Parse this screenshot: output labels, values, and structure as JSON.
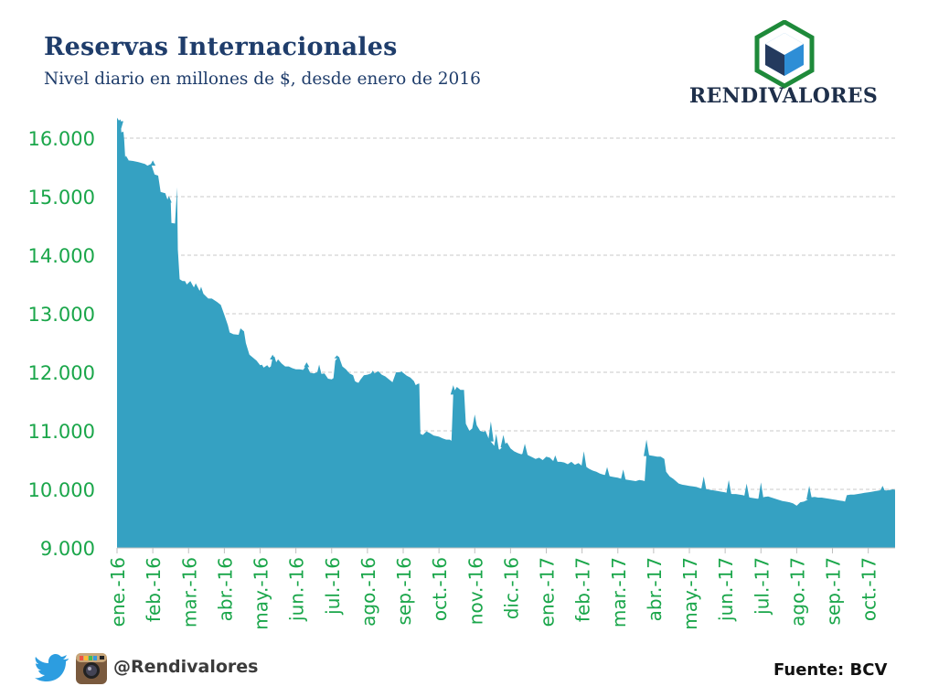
{
  "header": {
    "title": "Reservas Internacionales",
    "subtitle": "Nivel diario en millones de $, desde enero de 2016"
  },
  "brand": {
    "name": "RENDIVALORES"
  },
  "footer": {
    "handle": "@Rendivalores",
    "source": "Fuente: BCV"
  },
  "colors": {
    "area": "#35a1c2",
    "tick_text": "#1aa64a",
    "title": "#1f3d6b",
    "logo_green": "#1e8a3a",
    "logo_blue": "#2e8ed6",
    "logo_dark": "#243a5e"
  },
  "icons": [
    "twitter-icon",
    "instagram-icon"
  ],
  "chart_data": {
    "type": "area",
    "title": "Reservas Internacionales",
    "subtitle": "Nivel diario en millones de $, desde enero de 2016",
    "xlabel": "",
    "ylabel": "",
    "ylim": [
      9000,
      16500
    ],
    "yticks": [
      9000,
      10000,
      11000,
      12000,
      13000,
      14000,
      15000,
      16000
    ],
    "ytick_labels": [
      "9.000",
      "10.000",
      "11.000",
      "12.000",
      "13.000",
      "14.000",
      "15.000",
      "16.000"
    ],
    "xtick_labels": [
      "ene.-16",
      "feb.-16",
      "mar.-16",
      "abr.-16",
      "may.-16",
      "jun.-16",
      "jul.-16",
      "ago.-16",
      "sep.-16",
      "oct.-16",
      "nov.-16",
      "dic.-16",
      "ene.-17",
      "feb.-17",
      "mar.-17",
      "abr.-17",
      "may.-17",
      "jun.-17",
      "jul.-17",
      "ago.-17",
      "sep.-17",
      "oct.-17"
    ],
    "x_range_months": [
      0,
      21.75
    ],
    "grid": "horizontal dashed",
    "series": [
      {
        "points": [
          [
            0.0,
            16350
          ],
          [
            0.05,
            16300
          ],
          [
            0.1,
            16320
          ],
          [
            0.12,
            16100
          ],
          [
            0.18,
            16110
          ],
          [
            0.2,
            15980
          ],
          [
            0.23,
            15650
          ],
          [
            0.3,
            15620
          ],
          [
            0.45,
            15610
          ],
          [
            0.6,
            15590
          ],
          [
            0.78,
            15560
          ],
          [
            0.85,
            15530
          ],
          [
            0.95,
            15560
          ],
          [
            1.05,
            15380
          ],
          [
            1.15,
            15360
          ],
          [
            1.22,
            15080
          ],
          [
            1.35,
            15060
          ],
          [
            1.42,
            14930
          ],
          [
            1.5,
            14930
          ],
          [
            1.52,
            14550
          ],
          [
            1.62,
            14540
          ],
          [
            1.68,
            15160
          ],
          [
            1.7,
            14100
          ],
          [
            1.75,
            13590
          ],
          [
            1.83,
            13560
          ],
          [
            1.9,
            13560
          ],
          [
            1.95,
            13500
          ],
          [
            2.05,
            13560
          ],
          [
            2.1,
            13500
          ],
          [
            2.15,
            13450
          ],
          [
            2.2,
            13520
          ],
          [
            2.3,
            13400
          ],
          [
            2.4,
            13350
          ],
          [
            2.55,
            13260
          ],
          [
            2.65,
            13260
          ],
          [
            2.8,
            13200
          ],
          [
            2.9,
            13150
          ],
          [
            3.0,
            12980
          ],
          [
            3.1,
            12800
          ],
          [
            3.15,
            12680
          ],
          [
            3.25,
            12650
          ],
          [
            3.4,
            12640
          ],
          [
            3.45,
            12750
          ],
          [
            3.55,
            12700
          ],
          [
            3.6,
            12500
          ],
          [
            3.7,
            12300
          ],
          [
            3.8,
            12250
          ],
          [
            3.9,
            12200
          ],
          [
            4.0,
            12120
          ],
          [
            4.05,
            12130
          ],
          [
            4.1,
            12080
          ],
          [
            4.2,
            12120
          ],
          [
            4.25,
            12080
          ],
          [
            4.3,
            12100
          ],
          [
            4.35,
            12250
          ],
          [
            4.4,
            12270
          ],
          [
            4.45,
            12170
          ],
          [
            4.5,
            12220
          ],
          [
            4.6,
            12150
          ],
          [
            4.7,
            12100
          ],
          [
            4.8,
            12100
          ],
          [
            4.9,
            12070
          ],
          [
            5.0,
            12050
          ],
          [
            5.1,
            12050
          ],
          [
            5.2,
            12040
          ],
          [
            5.3,
            12120
          ],
          [
            5.4,
            11990
          ],
          [
            5.5,
            11980
          ],
          [
            5.6,
            12000
          ],
          [
            5.7,
            11970
          ],
          [
            5.8,
            11980
          ],
          [
            5.9,
            11890
          ],
          [
            6.0,
            11880
          ],
          [
            6.05,
            11900
          ],
          [
            6.1,
            12200
          ],
          [
            6.2,
            12270
          ],
          [
            6.3,
            12100
          ],
          [
            6.4,
            12050
          ],
          [
            6.5,
            11980
          ],
          [
            6.6,
            11950
          ],
          [
            6.65,
            11850
          ],
          [
            6.7,
            11830
          ],
          [
            6.75,
            11820
          ],
          [
            6.8,
            11870
          ],
          [
            6.9,
            11950
          ],
          [
            7.0,
            11960
          ],
          [
            7.1,
            11980
          ],
          [
            7.15,
            12030
          ],
          [
            7.2,
            11980
          ],
          [
            7.3,
            12020
          ],
          [
            7.4,
            11960
          ],
          [
            7.5,
            11930
          ],
          [
            7.6,
            11880
          ],
          [
            7.7,
            11830
          ],
          [
            7.8,
            12000
          ],
          [
            7.9,
            12000
          ],
          [
            8.0,
            11990
          ],
          [
            8.1,
            11940
          ],
          [
            8.2,
            11910
          ],
          [
            8.3,
            11850
          ],
          [
            8.35,
            11780
          ],
          [
            8.4,
            11800
          ],
          [
            8.45,
            11810
          ],
          [
            8.48,
            10950
          ],
          [
            8.55,
            10930
          ],
          [
            8.65,
            10990
          ],
          [
            8.75,
            10960
          ],
          [
            8.85,
            10920
          ],
          [
            9.0,
            10900
          ],
          [
            9.1,
            10870
          ],
          [
            9.2,
            10850
          ],
          [
            9.3,
            10850
          ],
          [
            9.35,
            10830
          ],
          [
            9.4,
            11650
          ],
          [
            9.5,
            11750
          ],
          [
            9.6,
            11700
          ],
          [
            9.7,
            11700
          ],
          [
            9.75,
            11120
          ],
          [
            9.85,
            11000
          ],
          [
            9.95,
            11050
          ],
          [
            10.05,
            11100
          ],
          [
            10.15,
            11000
          ],
          [
            10.25,
            10980
          ],
          [
            10.3,
            11000
          ],
          [
            10.4,
            10850
          ],
          [
            10.5,
            10780
          ],
          [
            10.6,
            10700
          ],
          [
            10.7,
            10680
          ],
          [
            10.8,
            10750
          ],
          [
            10.9,
            10800
          ],
          [
            11.0,
            10700
          ],
          [
            11.1,
            10650
          ],
          [
            11.2,
            10620
          ],
          [
            11.3,
            10600
          ],
          [
            11.4,
            10620
          ],
          [
            11.5,
            10580
          ],
          [
            11.6,
            10550
          ],
          [
            11.7,
            10520
          ],
          [
            11.8,
            10540
          ],
          [
            11.9,
            10500
          ],
          [
            12.0,
            10560
          ],
          [
            12.1,
            10540
          ],
          [
            12.2,
            10480
          ],
          [
            12.3,
            10470
          ],
          [
            12.4,
            10470
          ],
          [
            12.5,
            10460
          ],
          [
            12.6,
            10430
          ],
          [
            12.7,
            10470
          ],
          [
            12.8,
            10420
          ],
          [
            12.9,
            10450
          ],
          [
            13.0,
            10400
          ],
          [
            13.1,
            10390
          ],
          [
            13.2,
            10350
          ],
          [
            13.3,
            10320
          ],
          [
            13.4,
            10300
          ],
          [
            13.5,
            10270
          ],
          [
            13.6,
            10250
          ],
          [
            13.7,
            10240
          ],
          [
            13.8,
            10220
          ],
          [
            13.9,
            10210
          ],
          [
            14.0,
            10200
          ],
          [
            14.1,
            10180
          ],
          [
            14.2,
            10170
          ],
          [
            14.3,
            10160
          ],
          [
            14.4,
            10150
          ],
          [
            14.5,
            10140
          ],
          [
            14.6,
            10160
          ],
          [
            14.7,
            10150
          ],
          [
            14.75,
            10140
          ],
          [
            14.8,
            10600
          ],
          [
            14.9,
            10580
          ],
          [
            15.0,
            10570
          ],
          [
            15.1,
            10560
          ],
          [
            15.2,
            10560
          ],
          [
            15.3,
            10520
          ],
          [
            15.35,
            10300
          ],
          [
            15.45,
            10220
          ],
          [
            15.55,
            10180
          ],
          [
            15.7,
            10100
          ],
          [
            15.8,
            10080
          ],
          [
            15.9,
            10070
          ],
          [
            16.0,
            10060
          ],
          [
            16.1,
            10050
          ],
          [
            16.2,
            10040
          ],
          [
            16.3,
            10020
          ],
          [
            16.4,
            10010
          ],
          [
            16.5,
            10000
          ],
          [
            16.6,
            9990
          ],
          [
            16.7,
            9980
          ],
          [
            16.8,
            9970
          ],
          [
            16.9,
            9960
          ],
          [
            17.0,
            9950
          ],
          [
            17.1,
            9930
          ],
          [
            17.2,
            9920
          ],
          [
            17.3,
            9920
          ],
          [
            17.4,
            9910
          ],
          [
            17.5,
            9900
          ],
          [
            17.6,
            9880
          ],
          [
            17.7,
            9860
          ],
          [
            17.8,
            9850
          ],
          [
            17.9,
            9840
          ],
          [
            18.0,
            9850
          ],
          [
            18.1,
            9870
          ],
          [
            18.2,
            9880
          ],
          [
            18.3,
            9860
          ],
          [
            18.4,
            9840
          ],
          [
            18.5,
            9820
          ],
          [
            18.6,
            9800
          ],
          [
            18.7,
            9790
          ],
          [
            18.8,
            9780
          ],
          [
            18.9,
            9760
          ],
          [
            18.95,
            9740
          ],
          [
            19.0,
            9720
          ],
          [
            19.1,
            9780
          ],
          [
            19.2,
            9790
          ],
          [
            19.3,
            9820
          ],
          [
            19.35,
            9860
          ],
          [
            19.5,
            9870
          ],
          [
            19.6,
            9860
          ],
          [
            19.7,
            9860
          ],
          [
            19.8,
            9850
          ],
          [
            19.9,
            9840
          ],
          [
            20.0,
            9830
          ],
          [
            20.1,
            9820
          ],
          [
            20.2,
            9810
          ],
          [
            20.3,
            9800
          ],
          [
            20.35,
            9790
          ],
          [
            20.4,
            9900
          ],
          [
            20.5,
            9910
          ],
          [
            20.6,
            9910
          ],
          [
            20.7,
            9920
          ],
          [
            20.8,
            9930
          ],
          [
            20.9,
            9940
          ],
          [
            21.0,
            9950
          ],
          [
            21.1,
            9960
          ],
          [
            21.2,
            9970
          ],
          [
            21.3,
            9980
          ],
          [
            21.4,
            9990
          ],
          [
            21.5,
            9980
          ],
          [
            21.6,
            9990
          ],
          [
            21.7,
            10000
          ],
          [
            21.75,
            9990
          ]
        ],
        "spikes": [
          [
            0.1,
            16130
          ],
          [
            0.25,
            15700
          ],
          [
            1.0,
            15620
          ],
          [
            1.45,
            15010
          ],
          [
            2.35,
            13460
          ],
          [
            4.35,
            12300
          ],
          [
            5.3,
            12170
          ],
          [
            5.65,
            12130
          ],
          [
            6.15,
            12290
          ],
          [
            7.95,
            12020
          ],
          [
            9.4,
            11780
          ],
          [
            10.0,
            11280
          ],
          [
            10.45,
            11160
          ],
          [
            10.6,
            10950
          ],
          [
            10.8,
            10930
          ],
          [
            11.4,
            10780
          ],
          [
            12.25,
            10580
          ],
          [
            13.05,
            10650
          ],
          [
            13.7,
            10380
          ],
          [
            14.15,
            10340
          ],
          [
            14.8,
            10850
          ],
          [
            16.4,
            10220
          ],
          [
            17.1,
            10160
          ],
          [
            17.6,
            10100
          ],
          [
            18.0,
            10120
          ],
          [
            19.35,
            10060
          ],
          [
            21.4,
            10060
          ]
        ]
      }
    ]
  }
}
